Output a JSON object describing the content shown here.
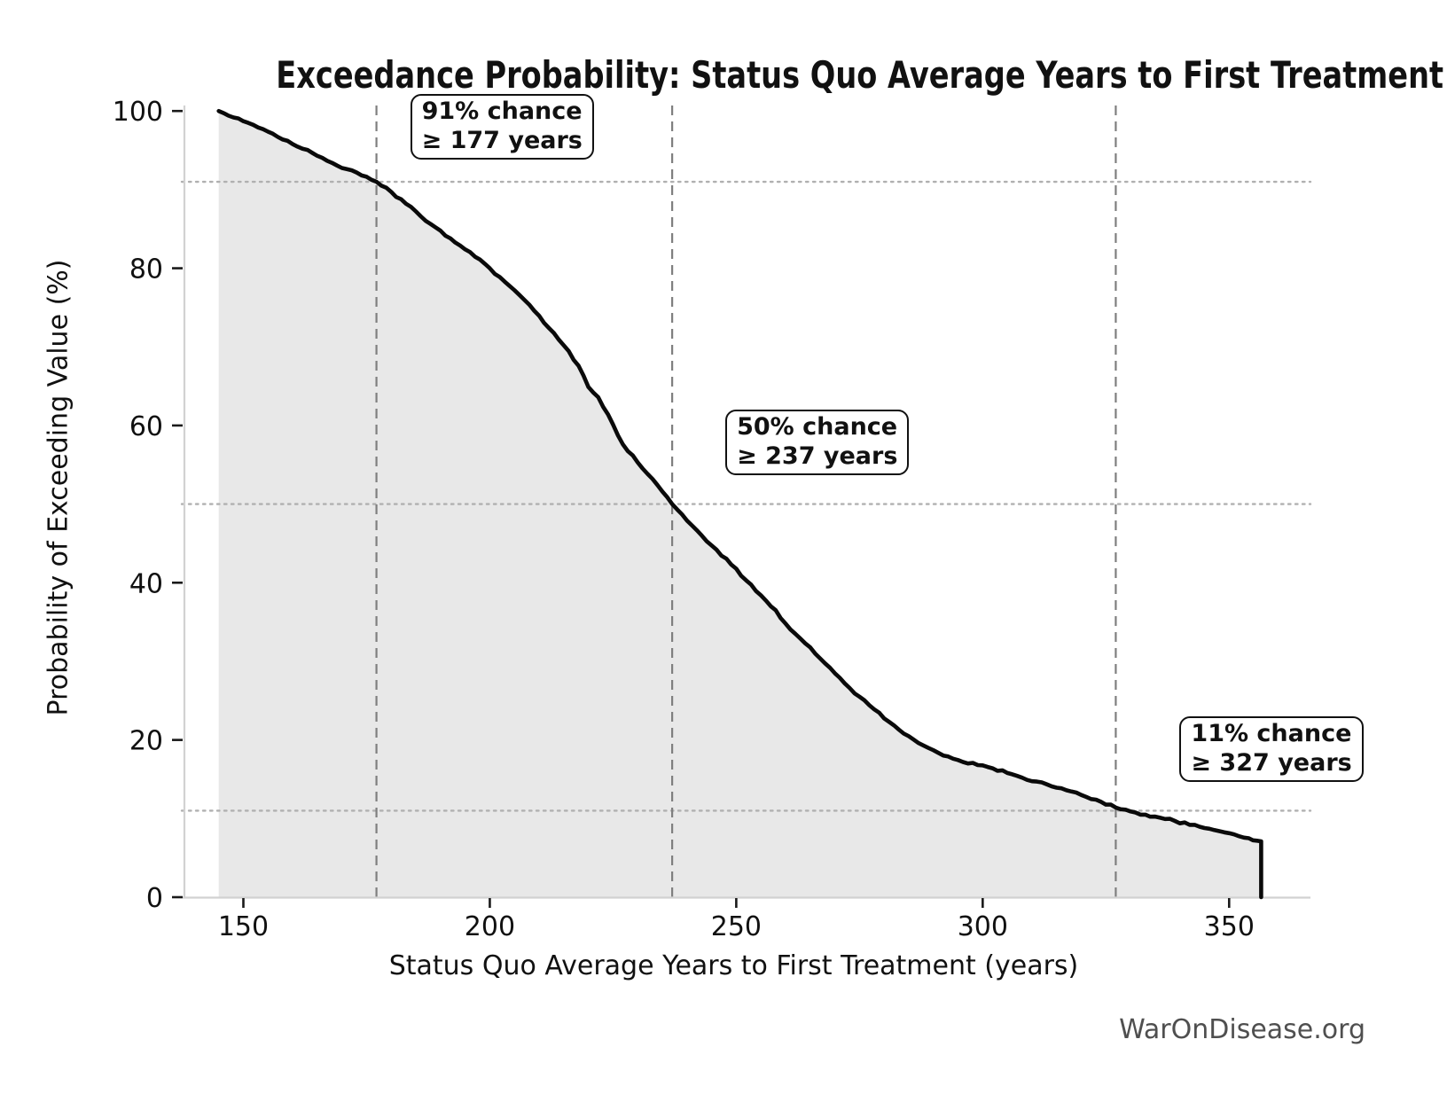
{
  "chart_data": {
    "type": "area",
    "title": "Exceedance Probability: Status Quo Average Years to First Treatment",
    "xlabel": "Status Quo Average Years to First Treatment (years)",
    "ylabel": "Probability of Exceeding Value (%)",
    "watermark": "WarOnDisease.org",
    "xlim": [
      137.5,
      366.5
    ],
    "ylim": [
      0,
      100.7
    ],
    "x_ticks": [
      150,
      200,
      250,
      300,
      350
    ],
    "y_ticks": [
      0,
      20,
      40,
      60,
      80,
      100
    ],
    "grid": "reference lines only",
    "legend": "none",
    "series": [
      {
        "name": "Exceedance probability of status quo average years to first treatment",
        "points": [
          [
            145,
            100
          ],
          [
            147,
            99.4
          ],
          [
            150,
            98.7
          ],
          [
            153,
            97.9
          ],
          [
            156,
            97.1
          ],
          [
            159,
            96.2
          ],
          [
            162,
            95.2
          ],
          [
            165,
            94.3
          ],
          [
            168,
            93.4
          ],
          [
            171,
            92.6
          ],
          [
            174,
            91.8
          ],
          [
            177,
            91.0
          ],
          [
            180,
            89.7
          ],
          [
            183,
            88.2
          ],
          [
            186,
            86.6
          ],
          [
            189,
            85.2
          ],
          [
            192,
            83.8
          ],
          [
            195,
            82.4
          ],
          [
            198,
            81.1
          ],
          [
            200,
            80.0
          ],
          [
            203,
            78.3
          ],
          [
            206,
            76.6
          ],
          [
            209,
            74.6
          ],
          [
            212,
            72.4
          ],
          [
            215,
            70.2
          ],
          [
            218,
            67.6
          ],
          [
            220,
            64.9
          ],
          [
            222,
            63.6
          ],
          [
            224,
            61.4
          ],
          [
            227,
            57.6
          ],
          [
            230,
            55.3
          ],
          [
            233,
            53.2
          ],
          [
            235,
            51.6
          ],
          [
            237,
            50.0
          ],
          [
            240,
            47.9
          ],
          [
            243,
            46.0
          ],
          [
            246,
            44.2
          ],
          [
            249,
            42.3
          ],
          [
            252,
            40.3
          ],
          [
            255,
            38.4
          ],
          [
            258,
            36.5
          ],
          [
            260,
            34.8
          ],
          [
            263,
            32.9
          ],
          [
            266,
            31.0
          ],
          [
            269,
            29.2
          ],
          [
            272,
            27.2
          ],
          [
            275,
            25.5
          ],
          [
            278,
            23.9
          ],
          [
            281,
            22.3
          ],
          [
            284,
            20.8
          ],
          [
            287,
            19.6
          ],
          [
            290,
            18.7
          ],
          [
            293,
            17.9
          ],
          [
            296,
            17.2
          ],
          [
            299,
            16.8
          ],
          [
            302,
            16.4
          ],
          [
            305,
            15.8
          ],
          [
            308,
            15.2
          ],
          [
            311,
            14.7
          ],
          [
            314,
            14.1
          ],
          [
            317,
            13.6
          ],
          [
            320,
            13.0
          ],
          [
            323,
            12.4
          ],
          [
            327,
            11.4
          ],
          [
            330,
            10.9
          ],
          [
            333,
            10.5
          ],
          [
            336,
            10.1
          ],
          [
            339,
            9.7
          ],
          [
            342,
            9.2
          ],
          [
            345,
            8.8
          ],
          [
            348,
            8.4
          ],
          [
            351,
            8.0
          ],
          [
            354,
            7.5
          ],
          [
            356.5,
            7.1
          ],
          [
            356.5,
            0
          ]
        ]
      }
    ],
    "reference_lines": {
      "vertical_dashed_x": [
        177,
        237,
        327
      ],
      "horizontal_dotted_y": [
        91,
        50,
        11
      ]
    },
    "annotations": [
      {
        "lines": [
          "91% chance",
          "≥ 177 years"
        ],
        "x": 177,
        "y": 91
      },
      {
        "lines": [
          "50% chance",
          "≥ 237 years"
        ],
        "x": 237,
        "y": 50
      },
      {
        "lines": [
          "11% chance",
          "≥ 327 years"
        ],
        "x": 327,
        "y": 11
      }
    ],
    "colors": {
      "curve": "#0a0a0a",
      "fill": "#e8e8e8",
      "dashed_line": "#7f7f7f",
      "dotted_line": "#b0b0b0",
      "spine": "#d2d2d2",
      "tick": "#1a1a1a",
      "text": "#111111",
      "watermark": "#4f4f4f",
      "annotation_border": "#111111",
      "annotation_bg": "#ffffff"
    }
  }
}
